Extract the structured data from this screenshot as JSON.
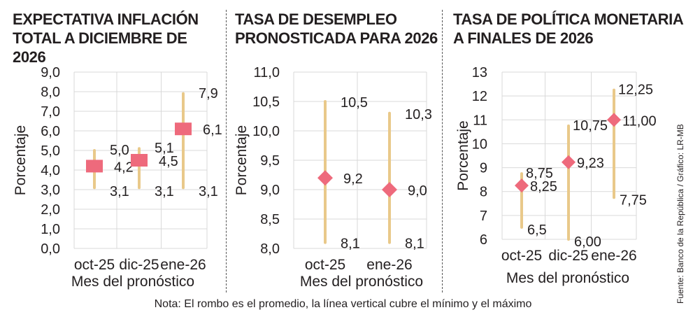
{
  "colors": {
    "range_line": "#e9c98a",
    "marker": "#ee6a7c",
    "grid": "#d9d9d9",
    "text": "#231f20"
  },
  "note": "Nota: El rombo es el promedio, la línea vertical cubre el mínimo y el máximo",
  "source": "Fuente: Banco de la República / Gráfico: LR-MB",
  "chart_data": [
    {
      "type": "range",
      "title": "EXPECTATIVA INFLACIÓN\nTOTAL A DICIEMBRE DE 2026",
      "xlabel": "Mes del pronóstico",
      "ylabel": "Porcentaje",
      "marker": "square",
      "categories": [
        "oct-25",
        "dic-25",
        "ene-26"
      ],
      "ylim": [
        0,
        9
      ],
      "yticks": [
        "0,0",
        "1,0",
        "2,0",
        "3,0",
        "4,0",
        "5,0",
        "6,0",
        "7,0",
        "8,0",
        "9,0"
      ],
      "grid": true,
      "points": [
        {
          "min": 3.1,
          "mean": 4.2,
          "max": 5.0,
          "min_label": "3,1",
          "mean_label": "4,2",
          "max_label": "5,0"
        },
        {
          "min": 3.1,
          "mean": 4.5,
          "max": 5.1,
          "min_label": "3,1",
          "mean_label": "4,5",
          "max_label": "5,1"
        },
        {
          "min": 3.1,
          "mean": 6.1,
          "max": 7.9,
          "min_label": "3,1",
          "mean_label": "6,1",
          "max_label": "7,9"
        }
      ]
    },
    {
      "type": "range",
      "title": "TASA DE DESEMPLEO\nPRONOSTICADA PARA 2026",
      "xlabel": "Mes del pronóstico",
      "ylabel": "Porcentaje",
      "marker": "diamond",
      "categories": [
        "oct-25",
        "ene-26"
      ],
      "ylim": [
        8,
        11
      ],
      "yticks": [
        "8,0",
        "8,5",
        "9,0",
        "9,5",
        "10,0",
        "10,5",
        "11,0"
      ],
      "grid": true,
      "points": [
        {
          "min": 8.1,
          "mean": 9.2,
          "max": 10.5,
          "min_label": "8,1",
          "mean_label": "9,2",
          "max_label": "10,5"
        },
        {
          "min": 8.1,
          "mean": 9.0,
          "max": 10.3,
          "min_label": "8,1",
          "mean_label": "9,0",
          "max_label": "10,3"
        }
      ]
    },
    {
      "type": "range",
      "title": "TASA DE POLÍTICA MONETARIA\nA FINALES DE 2026",
      "xlabel": "Mes del pronóstico",
      "ylabel": "Porcentaje",
      "marker": "diamond",
      "categories": [
        "oct-25",
        "dic-25",
        "ene-26"
      ],
      "ylim": [
        6,
        13
      ],
      "yticks": [
        "6",
        "7",
        "8",
        "9",
        "10",
        "11",
        "12",
        "13"
      ],
      "grid": true,
      "points": [
        {
          "min": 6.5,
          "mean": 8.25,
          "max": 8.75,
          "min_label": "6,5",
          "mean_label": "8,25",
          "max_label": "8,75"
        },
        {
          "min": 6.0,
          "mean": 9.23,
          "max": 10.75,
          "min_label": "6,00",
          "mean_label": "9,23",
          "max_label": "10,75"
        },
        {
          "min": 7.75,
          "mean": 11.0,
          "max": 12.25,
          "min_label": "7,75",
          "mean_label": "11,00",
          "max_label": "12,25"
        }
      ]
    }
  ]
}
